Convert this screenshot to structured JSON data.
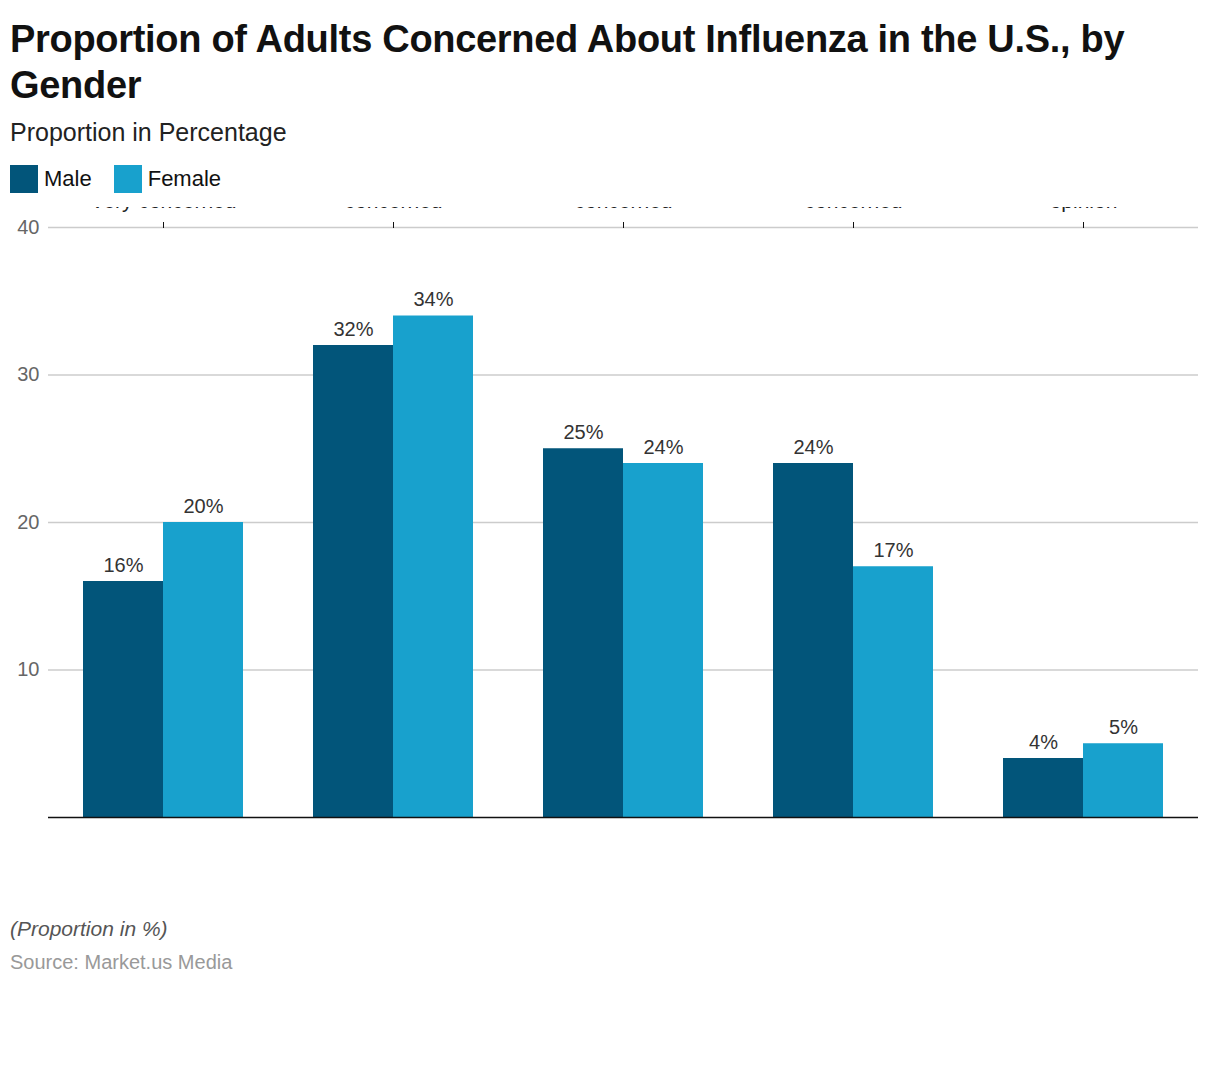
{
  "chart_data": {
    "type": "bar",
    "title": "Proportion of Adults Concerned About Influenza in the U.S., by Gender",
    "subtitle": "Proportion in Percentage",
    "caption": "(Proportion in %)",
    "source": "Source: Market.us Media",
    "categories": [
      "Very concerned",
      "Somewhat concerned",
      "Not very concerned",
      "Not at all concerned",
      "Don't know/ no opinion"
    ],
    "series": [
      {
        "name": "Male",
        "color": "#02557a",
        "values": [
          16,
          32,
          25,
          24,
          4
        ],
        "value_labels": [
          "16%",
          "32%",
          "25%",
          "24%",
          "4%"
        ]
      },
      {
        "name": "Female",
        "color": "#18a1cd",
        "values": [
          20,
          34,
          24,
          17,
          5
        ],
        "value_labels": [
          "20%",
          "34%",
          "24%",
          "17%",
          "5%"
        ]
      }
    ],
    "ylim": [
      0,
      40
    ],
    "yticks": [
      10,
      20,
      30,
      40
    ],
    "grid": true,
    "legend": "top-left",
    "data_labels": true
  }
}
